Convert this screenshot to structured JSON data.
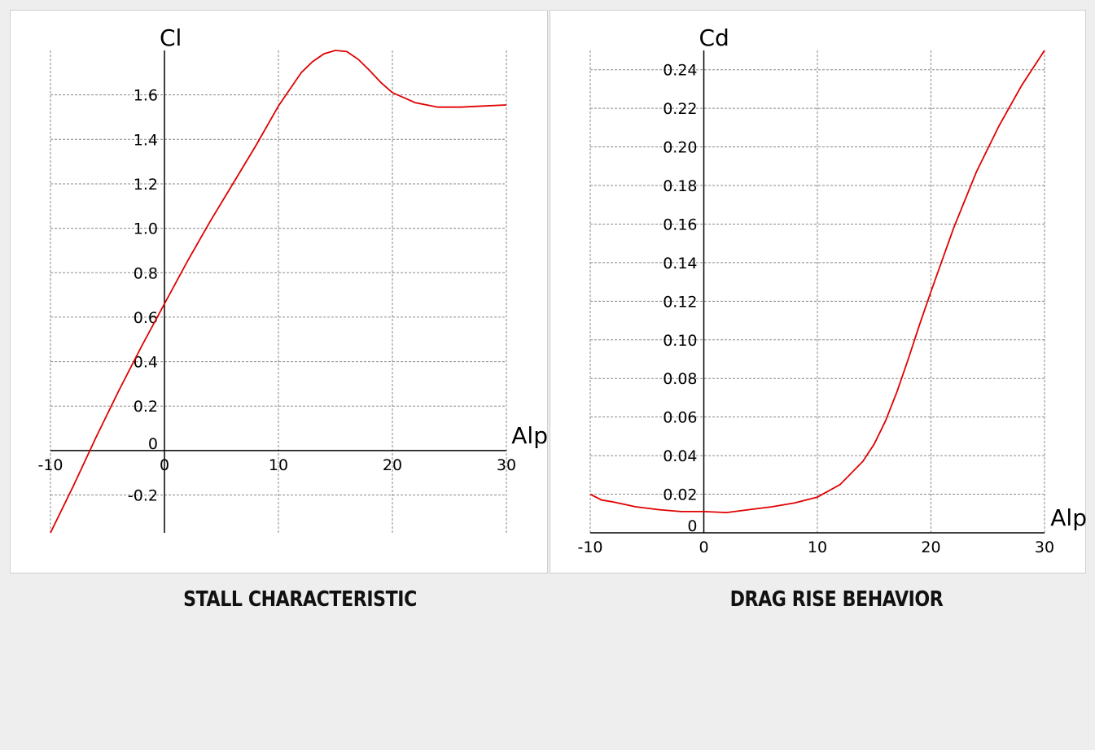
{
  "chart_data": [
    {
      "type": "line",
      "title": "STALL CHARACTERISTIC",
      "xlabel": "Alp",
      "ylabel": "Cl",
      "xlim": [
        -10,
        30
      ],
      "ylim": [
        -0.37,
        1.8
      ],
      "xticks": [
        -10,
        0,
        10,
        20,
        30
      ],
      "xtick_labels": [
        "-10",
        "0",
        "10",
        "20",
        "30"
      ],
      "yticks": [
        -0.2,
        0,
        0.2,
        0.4,
        0.6,
        0.8,
        1.0,
        1.2,
        1.4,
        1.6
      ],
      "ytick_labels": [
        "-0.2",
        "0",
        "0.2",
        "0.4",
        "0.6",
        "0.8",
        "1.0",
        "1.2",
        "1.4",
        "1.6"
      ],
      "grid": true,
      "color": "#e00000",
      "series": [
        {
          "x": [
            -10,
            -8,
            -6,
            -4,
            -2,
            0,
            2,
            4,
            6,
            8,
            10,
            12,
            13,
            14,
            15,
            16,
            17,
            18,
            19,
            20,
            22,
            24,
            26,
            28,
            30
          ],
          "y": [
            -0.37,
            -0.16,
            0.06,
            0.27,
            0.47,
            0.66,
            0.85,
            1.03,
            1.2,
            1.37,
            1.55,
            1.7,
            1.75,
            1.785,
            1.8,
            1.795,
            1.76,
            1.71,
            1.655,
            1.61,
            1.565,
            1.545,
            1.545,
            1.55,
            1.555
          ]
        }
      ]
    },
    {
      "type": "line",
      "title": "DRAG RISE BEHAVIOR",
      "xlabel": "Alp",
      "ylabel": "Cd",
      "xlim": [
        -10,
        30
      ],
      "ylim": [
        0,
        0.25
      ],
      "xticks": [
        -10,
        0,
        10,
        20,
        30
      ],
      "xtick_labels": [
        "-10",
        "0",
        "10",
        "20",
        "30"
      ],
      "yticks": [
        0,
        0.02,
        0.04,
        0.06,
        0.08,
        0.1,
        0.12,
        0.14,
        0.16,
        0.18,
        0.2,
        0.22,
        0.24
      ],
      "ytick_labels": [
        "0",
        "0.02",
        "0.04",
        "0.06",
        "0.08",
        "0.10",
        "0.12",
        "0.14",
        "0.16",
        "0.18",
        "0.20",
        "0.22",
        "0.24"
      ],
      "grid": true,
      "color": "#e00000",
      "series": [
        {
          "x": [
            -10,
            -9,
            -8,
            -6,
            -4,
            -2,
            0,
            2,
            4,
            6,
            8,
            10,
            12,
            14,
            15,
            16,
            17,
            18,
            19,
            20,
            22,
            24,
            26,
            28,
            30
          ],
          "y": [
            0.02,
            0.017,
            0.016,
            0.0135,
            0.012,
            0.011,
            0.011,
            0.0105,
            0.012,
            0.0135,
            0.0155,
            0.0185,
            0.025,
            0.037,
            0.046,
            0.058,
            0.073,
            0.09,
            0.108,
            0.125,
            0.158,
            0.187,
            0.211,
            0.232,
            0.25
          ]
        }
      ]
    }
  ]
}
